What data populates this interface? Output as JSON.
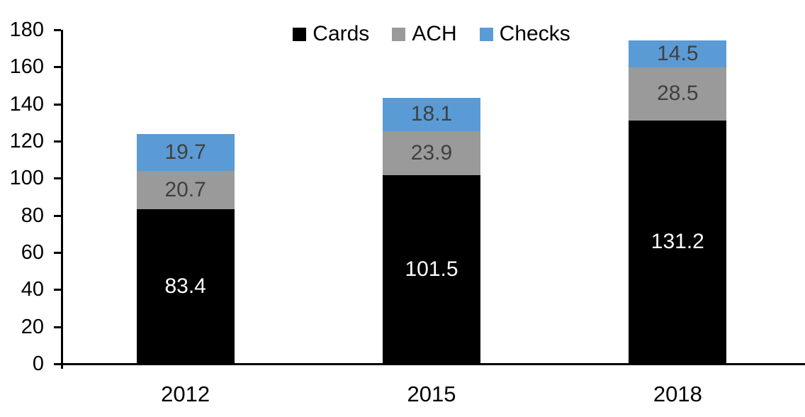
{
  "chart_data": {
    "type": "bar",
    "stacked": true,
    "title": "",
    "xlabel": "",
    "ylabel": "",
    "categories": [
      "2012",
      "2015",
      "2018"
    ],
    "series": [
      {
        "name": "Cards",
        "color": "#000000",
        "label_color": "#ffffff",
        "values": [
          83.4,
          101.5,
          131.2
        ]
      },
      {
        "name": "ACH",
        "color": "#9A9A9A",
        "label_color": "#404040",
        "values": [
          20.7,
          23.9,
          28.5
        ]
      },
      {
        "name": "Checks",
        "color": "#5B9BD5",
        "label_color": "#404040",
        "values": [
          19.7,
          18.1,
          14.5
        ]
      }
    ],
    "ylim": [
      0,
      180
    ],
    "yticks": [
      0,
      20,
      40,
      60,
      80,
      100,
      120,
      140,
      160,
      180
    ],
    "grid": false,
    "legend_position": "top",
    "axis_color": "#000000",
    "background": "#ffffff"
  }
}
